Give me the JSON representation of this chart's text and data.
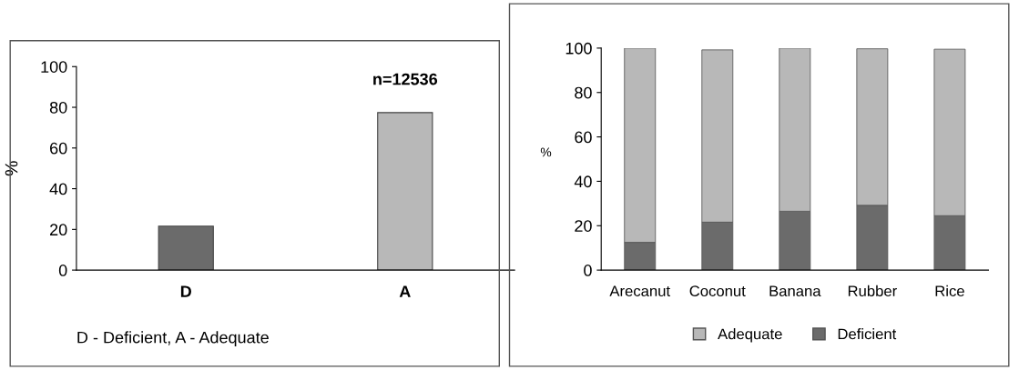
{
  "chart_data": [
    {
      "type": "bar",
      "categories": [
        "D",
        "A"
      ],
      "values": [
        21.6,
        77.4
      ],
      "colors": [
        "#6b6b6b",
        "#b8b8b8"
      ],
      "ylabel": "%",
      "ylim": [
        0,
        100
      ],
      "yticks": [
        0,
        20,
        40,
        60,
        80,
        100
      ],
      "grid": false,
      "legend": false,
      "annotations": [
        {
          "text": "n=12536",
          "x": "A",
          "y": 77.4
        },
        "D - Deficient, A - Adequate"
      ]
    },
    {
      "type": "bar",
      "stacked": true,
      "categories": [
        "Arecanut",
        "Coconut",
        "Banana",
        "Rubber",
        "Rice"
      ],
      "ylabel": "%",
      "ylim": [
        0,
        100
      ],
      "yticks": [
        0,
        20,
        40,
        60,
        80,
        100
      ],
      "grid": false,
      "legend": "bottom",
      "series": [
        {
          "name": "Deficient",
          "color": "#6b6b6b",
          "values": [
            12.5,
            21.6,
            26.5,
            29.2,
            24.5
          ]
        },
        {
          "name": "Adequate",
          "color": "#b8b8b8",
          "values": [
            87.5,
            77.6,
            73.5,
            70.5,
            75.0
          ]
        }
      ]
    }
  ]
}
